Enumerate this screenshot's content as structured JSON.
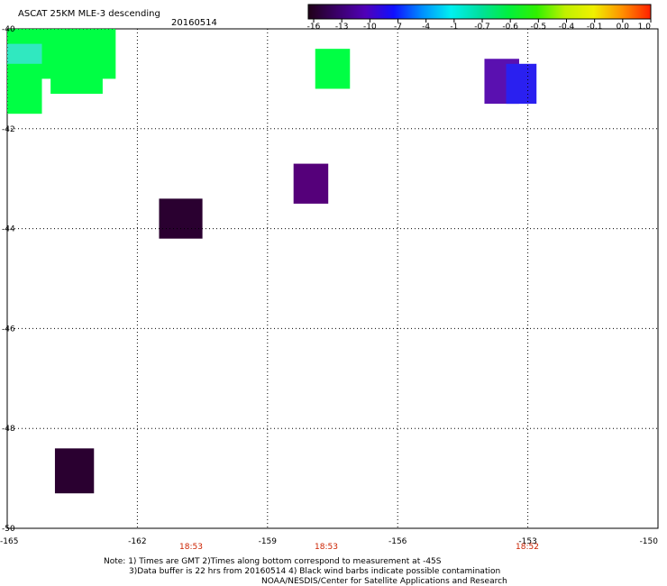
{
  "header": {
    "title": "ASCAT 25KM MLE-3 descending",
    "date": "20160514"
  },
  "colorbar": {
    "labels": [
      "-16",
      "-13",
      "-10",
      "-7",
      "-4",
      "-1",
      "-0.7",
      "-0.6",
      "-0.5",
      "-0.4",
      "-0.1",
      "0.0",
      "1.0"
    ],
    "colors": [
      "#200018",
      "#3a0068",
      "#5000b8",
      "#1010ff",
      "#0090ff",
      "#00f0f0",
      "#00e0a0",
      "#00f040",
      "#30f000",
      "#c0f000",
      "#f0f000",
      "#ff9000",
      "#ff2000"
    ]
  },
  "axes": {
    "lat_labels": [
      "-40",
      "-42",
      "-44",
      "-46",
      "-48",
      "-50"
    ],
    "lon_labels": [
      "-165",
      "-162",
      "-159",
      "-156",
      "-153",
      "-150"
    ],
    "times": [
      "18:53",
      "18:53",
      "18:52"
    ]
  },
  "chart_data": {
    "type": "heatmap",
    "title": "ASCAT 25KM MLE-3 descending",
    "subtitle": "20160514",
    "xlim": [
      -165,
      -150
    ],
    "ylim": [
      -50,
      -40
    ],
    "cells": [
      {
        "lon": [
          -165,
          -162.5
        ],
        "lat": [
          -41.0,
          -40.0
        ],
        "color": "#00ff44"
      },
      {
        "lon": [
          -165,
          -164.2
        ],
        "lat": [
          -41.7,
          -40.0
        ],
        "color": "#00ff44"
      },
      {
        "lon": [
          -164.0,
          -162.8
        ],
        "lat": [
          -41.3,
          -40.0
        ],
        "color": "#00ff44"
      },
      {
        "lon": [
          -165,
          -164.2
        ],
        "lat": [
          -40.7,
          -40.3
        ],
        "color": "#30e8c0"
      },
      {
        "lon": [
          -157.9,
          -157.1
        ],
        "lat": [
          -41.2,
          -40.4
        ],
        "color": "#00ff44"
      },
      {
        "lon": [
          -158.4,
          -157.6
        ],
        "lat": [
          -43.5,
          -42.7
        ],
        "color": "#55007a"
      },
      {
        "lon": [
          -161.5,
          -160.5
        ],
        "lat": [
          -44.2,
          -43.4
        ],
        "color": "#2a0030"
      },
      {
        "lon": [
          -154.0,
          -153.2
        ],
        "lat": [
          -41.5,
          -40.6
        ],
        "color": "#5a10b0"
      },
      {
        "lon": [
          -153.5,
          -152.8
        ],
        "lat": [
          -41.5,
          -40.7
        ],
        "color": "#2a20f0"
      },
      {
        "lon": [
          -163.9,
          -163.0
        ],
        "lat": [
          -49.3,
          -48.4
        ],
        "color": "#2a0030"
      }
    ]
  },
  "notes": {
    "line1": "Note: 1) Times are GMT 2)Times along bottom correspond to measurement at -45S",
    "line2": "3)Data buffer is 22 hrs from 20160514 4) Black wind barbs indicate possible contamination",
    "line3": "NOAA/NESDIS/Center for Satellite Applications and Research"
  }
}
